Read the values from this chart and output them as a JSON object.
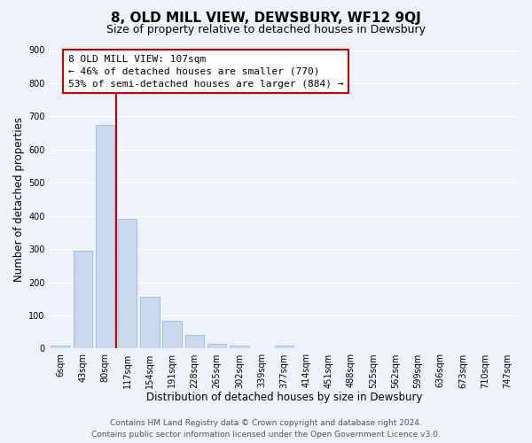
{
  "title": "8, OLD MILL VIEW, DEWSBURY, WF12 9QJ",
  "subtitle": "Size of property relative to detached houses in Dewsbury",
  "xlabel": "Distribution of detached houses by size in Dewsbury",
  "ylabel": "Number of detached properties",
  "bar_labels": [
    "6sqm",
    "43sqm",
    "80sqm",
    "117sqm",
    "154sqm",
    "191sqm",
    "228sqm",
    "265sqm",
    "302sqm",
    "339sqm",
    "377sqm",
    "414sqm",
    "451sqm",
    "488sqm",
    "525sqm",
    "562sqm",
    "599sqm",
    "636sqm",
    "673sqm",
    "710sqm",
    "747sqm"
  ],
  "bar_values": [
    8,
    295,
    675,
    390,
    155,
    85,
    40,
    15,
    10,
    0,
    10,
    0,
    0,
    0,
    0,
    0,
    0,
    0,
    0,
    0,
    0
  ],
  "bar_color": "#c9d9f0",
  "bar_edge_color": "#a0b8d8",
  "vline_color": "#cc0000",
  "vline_x": 2.5,
  "annotation_title": "8 OLD MILL VIEW: 107sqm",
  "annotation_line1": "← 46% of detached houses are smaller (770)",
  "annotation_line2": "53% of semi-detached houses are larger (884) →",
  "ylim": [
    0,
    900
  ],
  "yticks": [
    0,
    100,
    200,
    300,
    400,
    500,
    600,
    700,
    800,
    900
  ],
  "footer_line1": "Contains HM Land Registry data © Crown copyright and database right 2024.",
  "footer_line2": "Contains public sector information licensed under the Open Government Licence v3.0.",
  "bg_color": "#eef2fa",
  "grid_color": "#ffffff",
  "title_fontsize": 11,
  "subtitle_fontsize": 9,
  "axis_label_fontsize": 8.5,
  "tick_fontsize": 7,
  "annotation_fontsize": 8,
  "footer_fontsize": 6.5
}
